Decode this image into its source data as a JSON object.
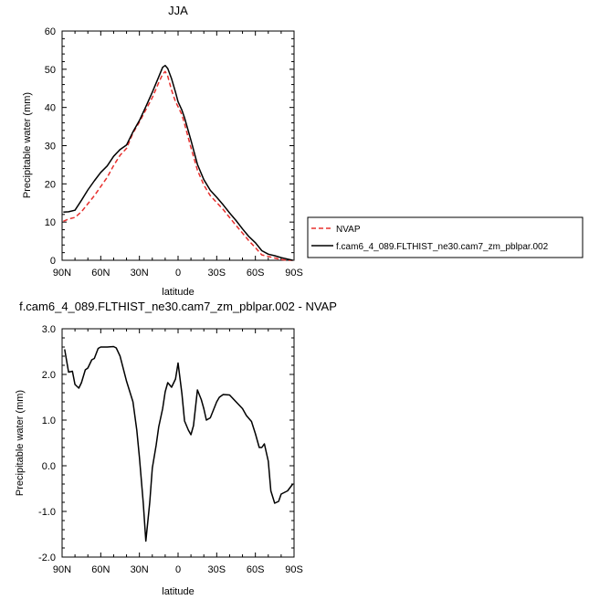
{
  "chart_data": [
    {
      "type": "line",
      "title": "JJA",
      "xlabel": "latitude",
      "ylabel": "Precipitable water (mm)",
      "x_ticks": [
        "90N",
        "60N",
        "30N",
        "0",
        "30S",
        "60S",
        "90S"
      ],
      "y_ticks": [
        "0",
        "10",
        "20",
        "30",
        "40",
        "50",
        "60"
      ],
      "xlim": [
        90,
        -90
      ],
      "ylim": [
        0,
        60
      ],
      "legend_position": "right",
      "series": [
        {
          "name": "NVAP",
          "color": "#e8302e",
          "dash": "dashed",
          "x": [
            89,
            85,
            80,
            75,
            70,
            65,
            60,
            55,
            50,
            45,
            40,
            35,
            30,
            25,
            20,
            15,
            12,
            10,
            8,
            5,
            2,
            0,
            -3,
            -5,
            -10,
            -15,
            -20,
            -25,
            -30,
            -35,
            -40,
            -45,
            -50,
            -55,
            -60,
            -65,
            -70,
            -75,
            -80,
            -85,
            -89
          ],
          "y": [
            10.2,
            10.8,
            11.2,
            12.7,
            14.8,
            16.9,
            19.3,
            21.7,
            24.8,
            27.5,
            29.3,
            33.3,
            36.2,
            39.4,
            42.6,
            46.5,
            48.7,
            49.4,
            48.2,
            44.5,
            41.5,
            40.2,
            38.1,
            35.7,
            29.5,
            23.6,
            19.7,
            16.9,
            15.1,
            13.3,
            11.2,
            9.1,
            7.1,
            5.1,
            3.3,
            1.4,
            1.0,
            0.6,
            0.2,
            0.0,
            0.0
          ]
        },
        {
          "name": "f.cam6_4_089.FLTHIST_ne30.cam7_zm_pblpar.002",
          "color": "#000000",
          "dash": "solid",
          "x": [
            89,
            85,
            80,
            75,
            70,
            65,
            60,
            55,
            50,
            45,
            40,
            35,
            30,
            25,
            20,
            15,
            12,
            10,
            8,
            5,
            2,
            0,
            -3,
            -5,
            -10,
            -15,
            -20,
            -25,
            -30,
            -35,
            -40,
            -45,
            -50,
            -55,
            -60,
            -65,
            -70,
            -75,
            -80,
            -85,
            -89
          ],
          "y": [
            12.6,
            12.7,
            13.1,
            15.7,
            18.4,
            20.8,
            23.0,
            24.7,
            27.2,
            29.0,
            30.2,
            33.6,
            36.6,
            40.2,
            44.0,
            48.0,
            50.5,
            51.0,
            50.2,
            47.5,
            44.0,
            41.5,
            39.3,
            37.3,
            31.4,
            25.1,
            21.1,
            18.3,
            16.5,
            14.5,
            12.4,
            10.4,
            8.2,
            6.2,
            4.6,
            2.5,
            1.6,
            1.2,
            0.7,
            0.3,
            0.0
          ]
        }
      ]
    },
    {
      "type": "line",
      "title": "f.cam6_4_089.FLTHIST_ne30.cam7_zm_pblpar.002 - NVAP",
      "xlabel": "latitude",
      "ylabel": "Precipitable water (mm)",
      "x_ticks": [
        "90N",
        "60N",
        "30N",
        "0",
        "30S",
        "60S",
        "90S"
      ],
      "y_ticks": [
        "-2.0",
        "-1.0",
        "0.0",
        "1.0",
        "2.0",
        "3.0"
      ],
      "xlim": [
        90,
        -90
      ],
      "ylim": [
        -2,
        3
      ],
      "series": [
        {
          "color": "#000000",
          "x": [
            88,
            85,
            82,
            80,
            77,
            75,
            72,
            70,
            67,
            65,
            62,
            60,
            55,
            50,
            48,
            45,
            40,
            35,
            32,
            30,
            27,
            25,
            22,
            20,
            17,
            15,
            12,
            10,
            8,
            5,
            2,
            0,
            -3,
            -5,
            -8,
            -10,
            -12,
            -15,
            -18,
            -20,
            -22,
            -25,
            -30,
            -32,
            -35,
            -40,
            -45,
            -50,
            -53,
            -57,
            -60,
            -63,
            -65,
            -67,
            -70,
            -72,
            -75,
            -78,
            -80,
            -85,
            -89
          ],
          "y": [
            2.55,
            2.05,
            2.07,
            1.78,
            1.7,
            1.82,
            2.1,
            2.14,
            2.32,
            2.35,
            2.57,
            2.6,
            2.6,
            2.61,
            2.58,
            2.4,
            1.85,
            1.4,
            0.78,
            0.18,
            -0.82,
            -1.65,
            -0.8,
            -0.05,
            0.45,
            0.85,
            1.25,
            1.62,
            1.82,
            1.72,
            1.9,
            2.25,
            1.58,
            0.98,
            0.78,
            0.68,
            0.88,
            1.66,
            1.45,
            1.25,
            1.0,
            1.05,
            1.4,
            1.5,
            1.56,
            1.55,
            1.4,
            1.25,
            1.1,
            0.97,
            0.7,
            0.4,
            0.4,
            0.48,
            0.1,
            -0.55,
            -0.82,
            -0.78,
            -0.62,
            -0.55,
            -0.4
          ]
        }
      ]
    }
  ]
}
